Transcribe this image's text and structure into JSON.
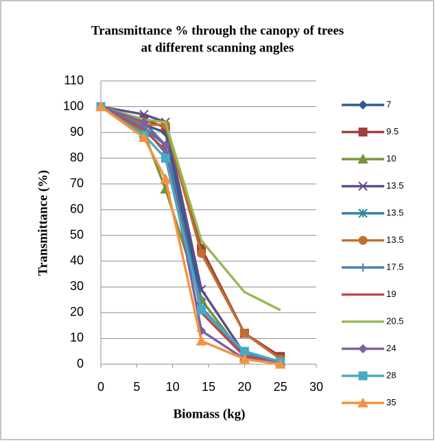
{
  "chart_data": {
    "type": "line",
    "title": [
      "Transmittance % through the canopy of trees",
      "at different scanning angles"
    ],
    "x_label": "Biomass (kg)",
    "y_label": "Transmittance (%)",
    "x": [
      0,
      6,
      9,
      14,
      20,
      25
    ],
    "xlim": [
      0,
      30
    ],
    "xticks": [
      0,
      5,
      10,
      15,
      20,
      25,
      30
    ],
    "ylim": [
      0,
      110
    ],
    "yticks": [
      0,
      10,
      20,
      30,
      40,
      50,
      60,
      70,
      80,
      90,
      100,
      110
    ],
    "grid": true,
    "legend": "right",
    "series": [
      {
        "name": "7",
        "color": "#2E5C94",
        "marker": "diamond",
        "values": [
          100,
          93,
          90,
          25,
          3,
          1
        ]
      },
      {
        "name": "9.5",
        "color": "#A33E3B",
        "marker": "square",
        "values": [
          100,
          95,
          92,
          45,
          12,
          3
        ]
      },
      {
        "name": "10",
        "color": "#77933C",
        "marker": "triangle",
        "values": [
          100,
          90,
          68,
          25,
          3,
          1
        ]
      },
      {
        "name": "13.5",
        "color": "#5F4B8B",
        "marker": "x",
        "values": [
          100,
          97,
          94,
          29,
          4,
          1
        ]
      },
      {
        "name": "13.5",
        "color": "#31859C",
        "marker": "star",
        "values": [
          100,
          92,
          85,
          22,
          3,
          1
        ]
      },
      {
        "name": "13.5",
        "color": "#C0702F",
        "marker": "circle",
        "values": [
          100,
          93,
          93,
          43,
          12,
          2
        ]
      },
      {
        "name": "17.5",
        "color": "#4A7EBB",
        "marker": "plus",
        "values": [
          100,
          92,
          82,
          22,
          4,
          1
        ]
      },
      {
        "name": "19",
        "color": "#BE4B48",
        "marker": "none",
        "values": [
          100,
          91,
          83,
          20,
          3,
          1
        ]
      },
      {
        "name": "20.5",
        "color": "#98B954",
        "marker": "none",
        "values": [
          100,
          95,
          94,
          48,
          28,
          21
        ]
      },
      {
        "name": "24",
        "color": "#7D60A0",
        "marker": "diamond",
        "values": [
          100,
          94,
          85,
          13,
          2,
          1
        ]
      },
      {
        "name": "28",
        "color": "#46AAC5",
        "marker": "square",
        "values": [
          100,
          89,
          80,
          21,
          5,
          1
        ]
      },
      {
        "name": "35",
        "color": "#F69240",
        "marker": "triangle",
        "values": [
          100,
          88,
          72,
          9,
          2,
          0
        ]
      }
    ]
  }
}
